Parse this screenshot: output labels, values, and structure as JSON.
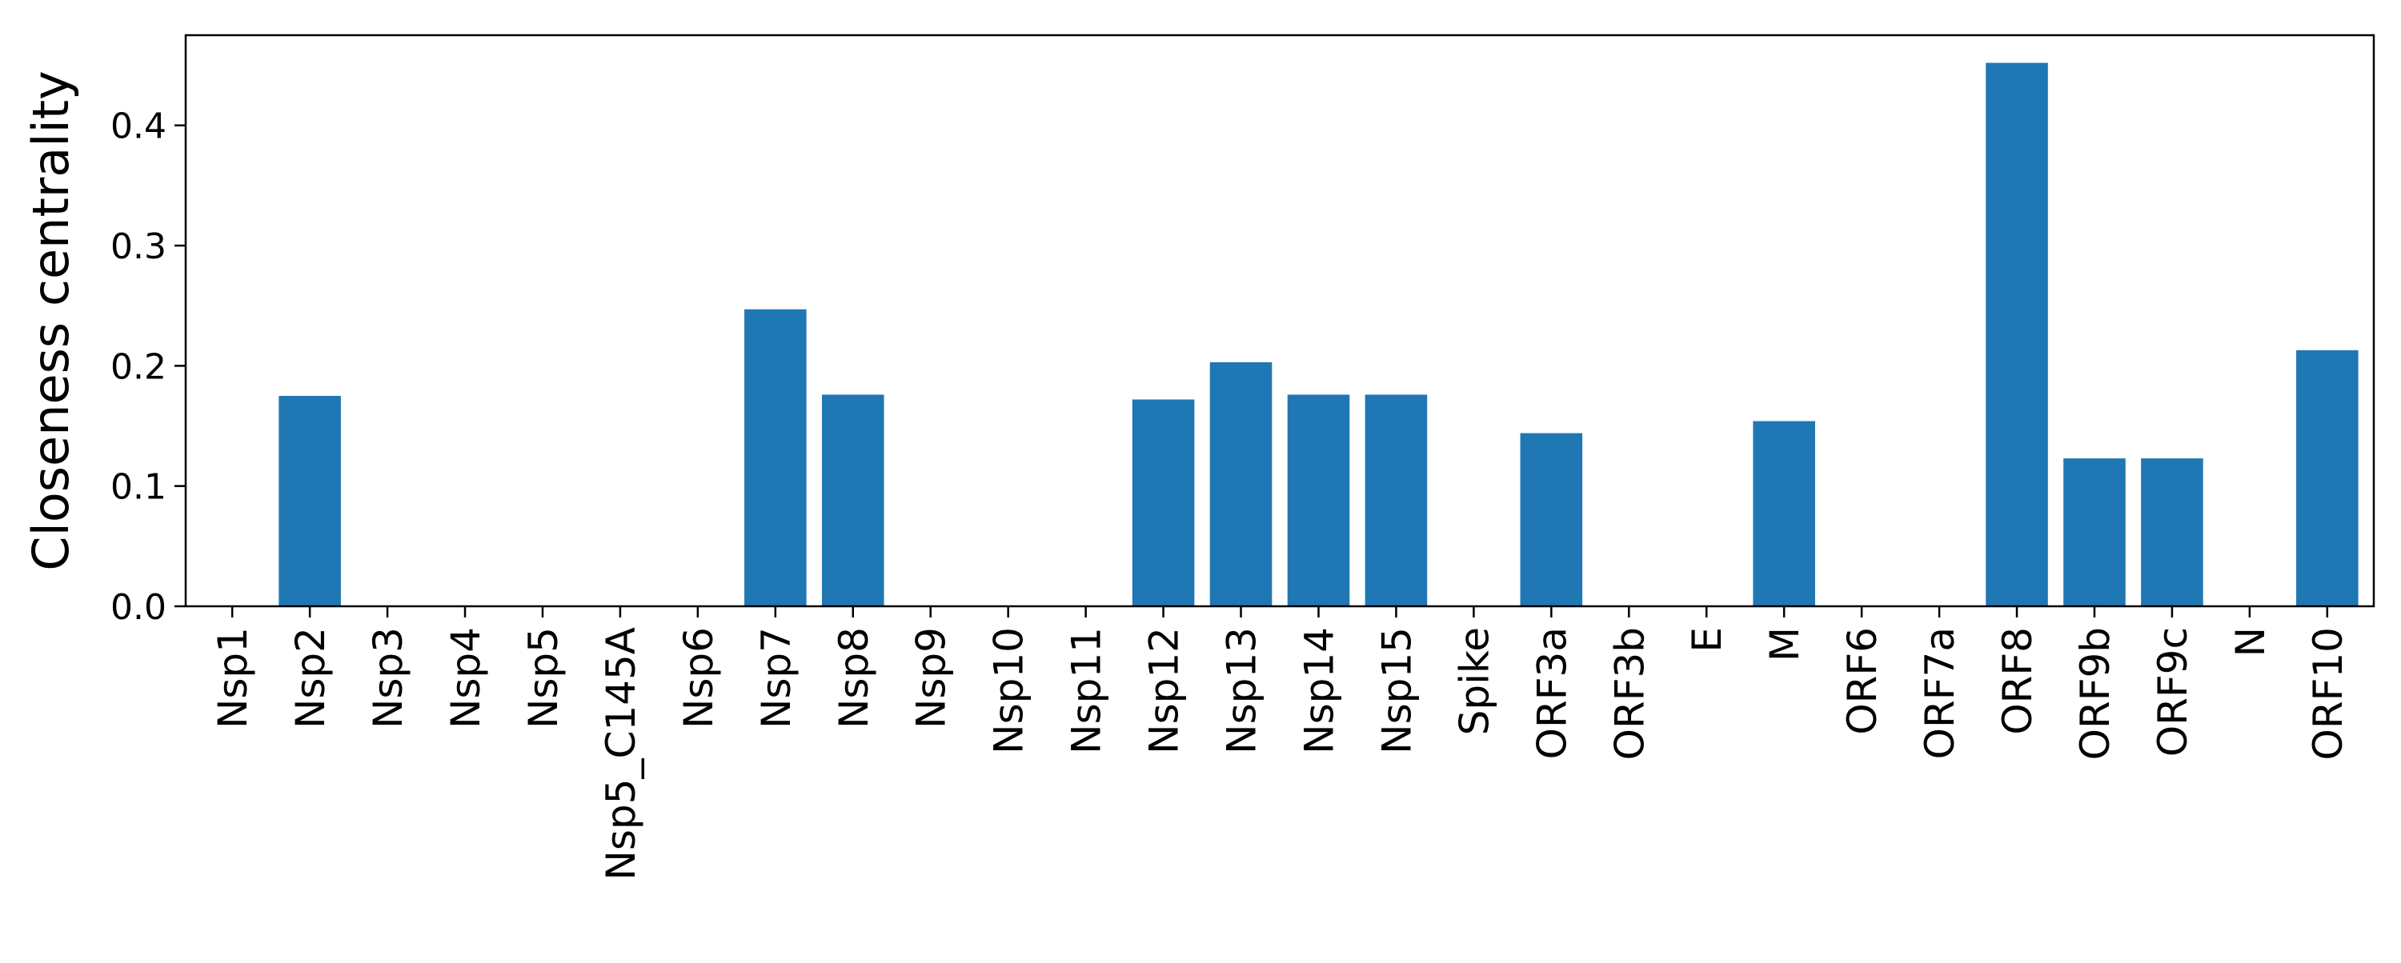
{
  "chart_data": {
    "type": "bar",
    "title": "",
    "xlabel": "",
    "ylabel": "Closeness centrality",
    "ylim": [
      0,
      0.475
    ],
    "yticks": [
      "0.0",
      "0.1",
      "0.2",
      "0.3",
      "0.4"
    ],
    "grid": false,
    "legend": "none",
    "bar_color": "#1f77b4",
    "categories": [
      "Nsp1",
      "Nsp2",
      "Nsp3",
      "Nsp4",
      "Nsp5",
      "Nsp5_C145A",
      "Nsp6",
      "Nsp7",
      "Nsp8",
      "Nsp9",
      "Nsp10",
      "Nsp11",
      "Nsp12",
      "Nsp13",
      "Nsp14",
      "Nsp15",
      "Spike",
      "ORF3a",
      "ORF3b",
      "E",
      "M",
      "ORF6",
      "ORF7a",
      "ORF8",
      "ORF9b",
      "ORF9c",
      "N",
      "ORF10"
    ],
    "values": [
      0,
      0.175,
      0,
      0,
      0,
      0,
      0,
      0.247,
      0.176,
      0,
      0,
      0,
      0.172,
      0.203,
      0.176,
      0.176,
      0,
      0.144,
      0,
      0,
      0.154,
      0,
      0,
      0.452,
      0.123,
      0.123,
      0,
      0.213
    ]
  }
}
